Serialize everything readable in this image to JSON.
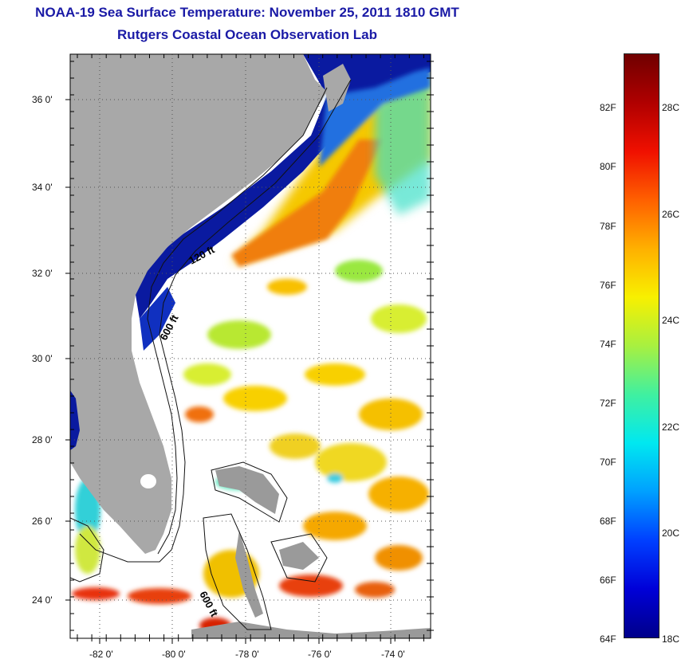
{
  "titles": {
    "line1": "NOAA-19 Sea Surface Temperature:  November 25, 2011 1810 GMT",
    "line2": "Rutgers Coastal Ocean Observation Lab"
  },
  "map": {
    "lat_ticks": [
      "36 0'",
      "34 0'",
      "32 0'",
      "30 0'",
      "28 0'",
      "26 0'",
      "24 0'"
    ],
    "lon_ticks": [
      "-82 0'",
      "-80 0'",
      "-78 0'",
      "-76 0'",
      "-74 0'"
    ],
    "contour_labels": [
      "120 ft",
      "600 ft",
      "600 ft"
    ],
    "colors": {
      "land": "#a8a8a8",
      "cloud": "#ffffff",
      "cold": "#0a1aa0",
      "warm": "#e84a1a"
    }
  },
  "colorbar": {
    "fahrenheit": [
      "82F",
      "80F",
      "78F",
      "76F",
      "74F",
      "72F",
      "70F",
      "68F",
      "66F",
      "64F"
    ],
    "celsius": [
      "28C",
      "26C",
      "24C",
      "22C",
      "20C",
      "18C"
    ],
    "gradient": [
      "#00008a",
      "#0000d8",
      "#0040ff",
      "#00a0ff",
      "#00e8f0",
      "#40f0a0",
      "#a8f040",
      "#f8f000",
      "#ffb000",
      "#ff6000",
      "#f01000",
      "#b00000",
      "#700000"
    ]
  }
}
